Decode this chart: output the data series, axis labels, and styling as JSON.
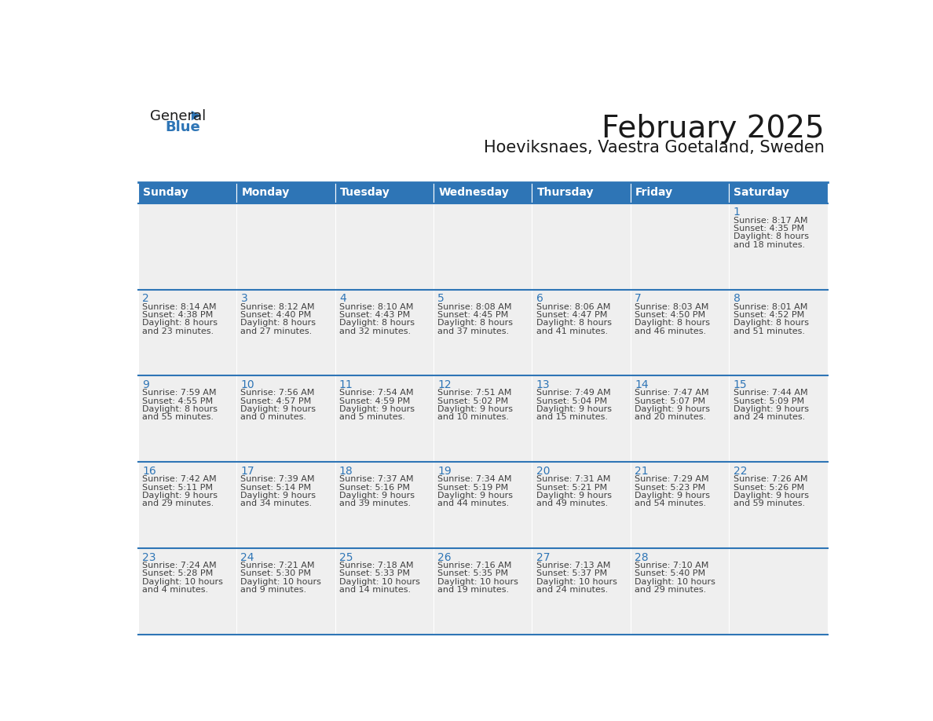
{
  "title": "February 2025",
  "subtitle": "Hoeviksnaes, Vaestra Goetaland, Sweden",
  "header_bg": "#2E75B6",
  "header_text_color": "#FFFFFF",
  "cell_bg": "#EFEFEF",
  "day_number_color": "#2E75B6",
  "text_color": "#404040",
  "border_color": "#2E75B6",
  "days_of_week": [
    "Sunday",
    "Monday",
    "Tuesday",
    "Wednesday",
    "Thursday",
    "Friday",
    "Saturday"
  ],
  "weeks": [
    [
      {
        "day": null,
        "sunrise": null,
        "sunset": null,
        "daylight": null
      },
      {
        "day": null,
        "sunrise": null,
        "sunset": null,
        "daylight": null
      },
      {
        "day": null,
        "sunrise": null,
        "sunset": null,
        "daylight": null
      },
      {
        "day": null,
        "sunrise": null,
        "sunset": null,
        "daylight": null
      },
      {
        "day": null,
        "sunrise": null,
        "sunset": null,
        "daylight": null
      },
      {
        "day": null,
        "sunrise": null,
        "sunset": null,
        "daylight": null
      },
      {
        "day": 1,
        "sunrise": "8:17 AM",
        "sunset": "4:35 PM",
        "daylight": "8 hours",
        "daylight2": "and 18 minutes."
      }
    ],
    [
      {
        "day": 2,
        "sunrise": "8:14 AM",
        "sunset": "4:38 PM",
        "daylight": "8 hours",
        "daylight2": "and 23 minutes."
      },
      {
        "day": 3,
        "sunrise": "8:12 AM",
        "sunset": "4:40 PM",
        "daylight": "8 hours",
        "daylight2": "and 27 minutes."
      },
      {
        "day": 4,
        "sunrise": "8:10 AM",
        "sunset": "4:43 PM",
        "daylight": "8 hours",
        "daylight2": "and 32 minutes."
      },
      {
        "day": 5,
        "sunrise": "8:08 AM",
        "sunset": "4:45 PM",
        "daylight": "8 hours",
        "daylight2": "and 37 minutes."
      },
      {
        "day": 6,
        "sunrise": "8:06 AM",
        "sunset": "4:47 PM",
        "daylight": "8 hours",
        "daylight2": "and 41 minutes."
      },
      {
        "day": 7,
        "sunrise": "8:03 AM",
        "sunset": "4:50 PM",
        "daylight": "8 hours",
        "daylight2": "and 46 minutes."
      },
      {
        "day": 8,
        "sunrise": "8:01 AM",
        "sunset": "4:52 PM",
        "daylight": "8 hours",
        "daylight2": "and 51 minutes."
      }
    ],
    [
      {
        "day": 9,
        "sunrise": "7:59 AM",
        "sunset": "4:55 PM",
        "daylight": "8 hours",
        "daylight2": "and 55 minutes."
      },
      {
        "day": 10,
        "sunrise": "7:56 AM",
        "sunset": "4:57 PM",
        "daylight": "9 hours",
        "daylight2": "and 0 minutes."
      },
      {
        "day": 11,
        "sunrise": "7:54 AM",
        "sunset": "4:59 PM",
        "daylight": "9 hours",
        "daylight2": "and 5 minutes."
      },
      {
        "day": 12,
        "sunrise": "7:51 AM",
        "sunset": "5:02 PM",
        "daylight": "9 hours",
        "daylight2": "and 10 minutes."
      },
      {
        "day": 13,
        "sunrise": "7:49 AM",
        "sunset": "5:04 PM",
        "daylight": "9 hours",
        "daylight2": "and 15 minutes."
      },
      {
        "day": 14,
        "sunrise": "7:47 AM",
        "sunset": "5:07 PM",
        "daylight": "9 hours",
        "daylight2": "and 20 minutes."
      },
      {
        "day": 15,
        "sunrise": "7:44 AM",
        "sunset": "5:09 PM",
        "daylight": "9 hours",
        "daylight2": "and 24 minutes."
      }
    ],
    [
      {
        "day": 16,
        "sunrise": "7:42 AM",
        "sunset": "5:11 PM",
        "daylight": "9 hours",
        "daylight2": "and 29 minutes."
      },
      {
        "day": 17,
        "sunrise": "7:39 AM",
        "sunset": "5:14 PM",
        "daylight": "9 hours",
        "daylight2": "and 34 minutes."
      },
      {
        "day": 18,
        "sunrise": "7:37 AM",
        "sunset": "5:16 PM",
        "daylight": "9 hours",
        "daylight2": "and 39 minutes."
      },
      {
        "day": 19,
        "sunrise": "7:34 AM",
        "sunset": "5:19 PM",
        "daylight": "9 hours",
        "daylight2": "and 44 minutes."
      },
      {
        "day": 20,
        "sunrise": "7:31 AM",
        "sunset": "5:21 PM",
        "daylight": "9 hours",
        "daylight2": "and 49 minutes."
      },
      {
        "day": 21,
        "sunrise": "7:29 AM",
        "sunset": "5:23 PM",
        "daylight": "9 hours",
        "daylight2": "and 54 minutes."
      },
      {
        "day": 22,
        "sunrise": "7:26 AM",
        "sunset": "5:26 PM",
        "daylight": "9 hours",
        "daylight2": "and 59 minutes."
      }
    ],
    [
      {
        "day": 23,
        "sunrise": "7:24 AM",
        "sunset": "5:28 PM",
        "daylight": "10 hours",
        "daylight2": "and 4 minutes."
      },
      {
        "day": 24,
        "sunrise": "7:21 AM",
        "sunset": "5:30 PM",
        "daylight": "10 hours",
        "daylight2": "and 9 minutes."
      },
      {
        "day": 25,
        "sunrise": "7:18 AM",
        "sunset": "5:33 PM",
        "daylight": "10 hours",
        "daylight2": "and 14 minutes."
      },
      {
        "day": 26,
        "sunrise": "7:16 AM",
        "sunset": "5:35 PM",
        "daylight": "10 hours",
        "daylight2": "and 19 minutes."
      },
      {
        "day": 27,
        "sunrise": "7:13 AM",
        "sunset": "5:37 PM",
        "daylight": "10 hours",
        "daylight2": "and 24 minutes."
      },
      {
        "day": 28,
        "sunrise": "7:10 AM",
        "sunset": "5:40 PM",
        "daylight": "10 hours",
        "daylight2": "and 29 minutes."
      },
      {
        "day": null,
        "sunrise": null,
        "sunset": null,
        "daylight": null,
        "daylight2": null
      }
    ]
  ],
  "logo_text1": "General",
  "logo_text2": "Blue",
  "logo_color1": "#1a1a1a",
  "logo_color2": "#2E75B6",
  "title_fontsize": 28,
  "subtitle_fontsize": 15,
  "header_fontsize": 10,
  "day_num_fontsize": 10,
  "cell_fontsize": 8
}
